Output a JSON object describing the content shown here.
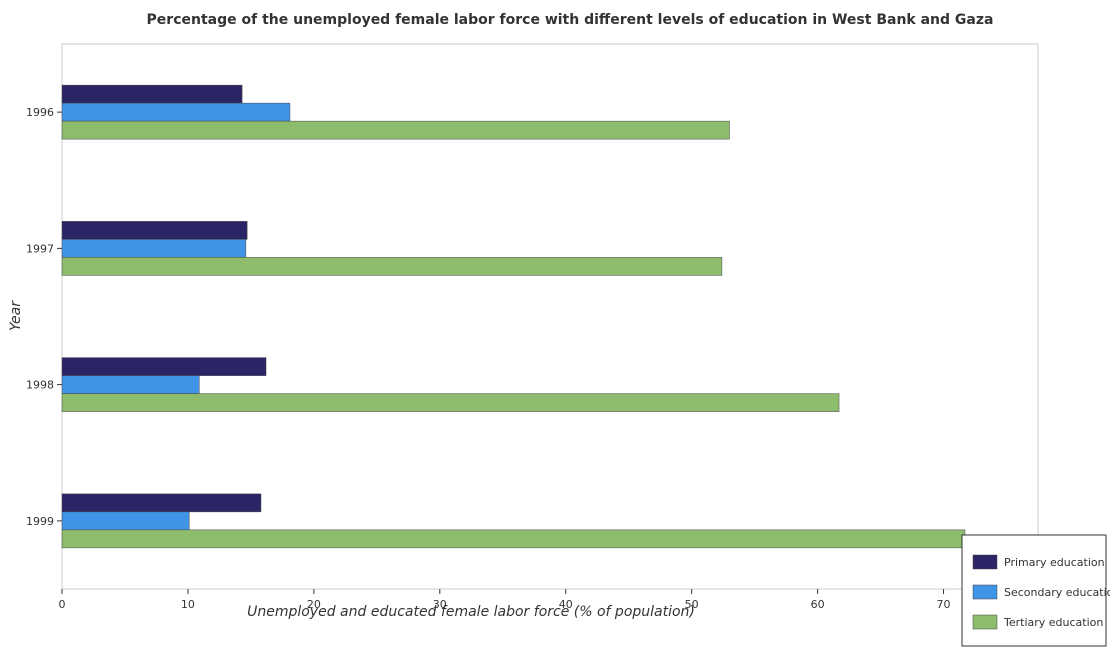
{
  "chart_data": {
    "type": "bar",
    "orientation": "horizontal",
    "title": "Percentage of the unemployed female labor force with different levels of education in West Bank and Gaza",
    "xlabel": "Unemployed and educated female labor force (% of population)",
    "ylabel": "Year",
    "categories": [
      "1996",
      "1997",
      "1998",
      "1999"
    ],
    "series": [
      {
        "name": "Primary education",
        "color": "#2b2566",
        "values": [
          14.3,
          14.7,
          16.2,
          15.8
        ]
      },
      {
        "name": "Secondary education",
        "color": "#3f94e8",
        "values": [
          18.1,
          14.6,
          10.9,
          10.1
        ]
      },
      {
        "name": "Tertiary education",
        "color": "#8ebc6d",
        "values": [
          53.0,
          52.4,
          61.7,
          71.7
        ]
      }
    ],
    "xlim": [
      0,
      77.5
    ],
    "xticks": [
      0,
      10,
      20,
      30,
      40,
      50,
      60,
      70
    ],
    "grid": false,
    "legend_position": "bottom-right"
  }
}
